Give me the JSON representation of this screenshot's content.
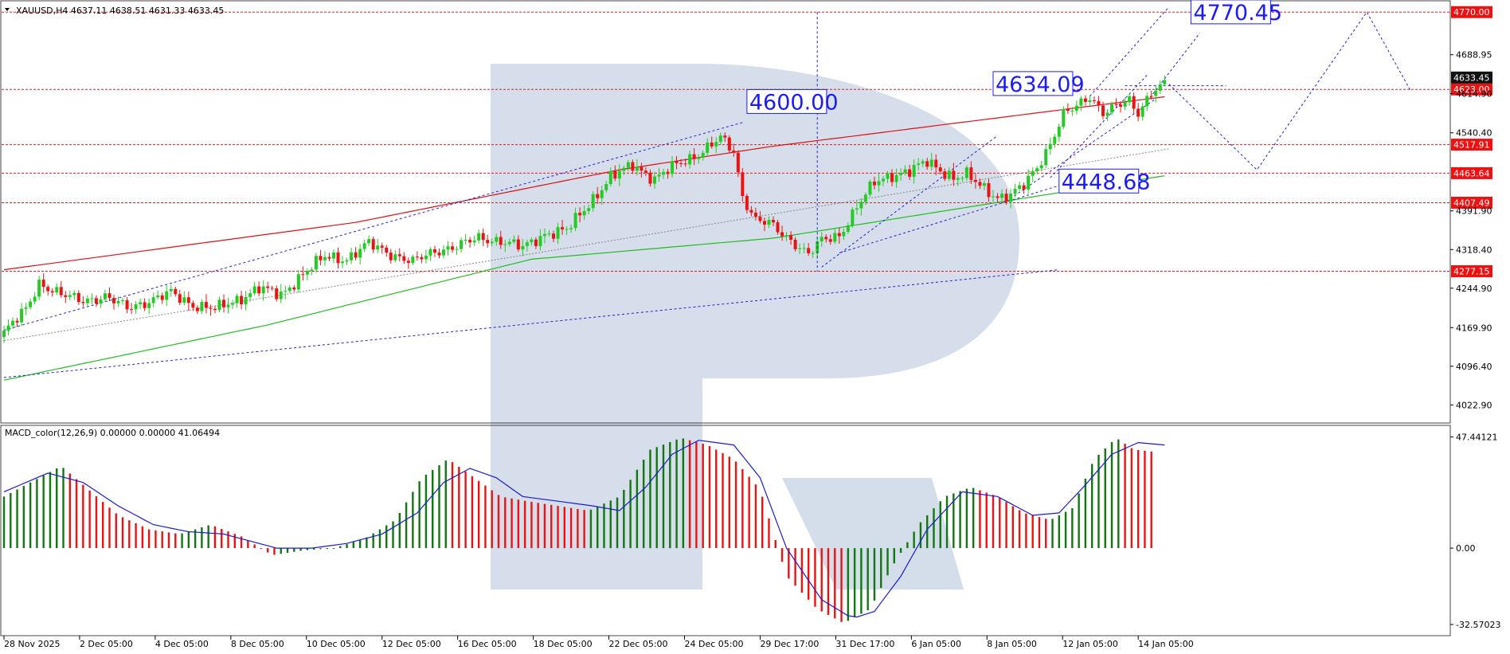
{
  "chart_data": [
    {
      "type": "candlestick",
      "symbol_header": "XAUUSD,H4  4637.11 4638.51 4631.33 4633.45",
      "ylim": [
        3990,
        4790
      ],
      "x_tick_labels": [
        "28 Nov 2025",
        "2 Dec 05:00",
        "4 Dec 05:00",
        "8 Dec 05:00",
        "10 Dec 05:00",
        "12 Dec 05:00",
        "16 Dec 05:00",
        "18 Dec 05:00",
        "22 Dec 05:00",
        "24 Dec 05:00",
        "29 Dec 17:00",
        "31 Dec 17:00",
        "6 Jan 05:00",
        "8 Jan 05:00",
        "12 Jan 05:00",
        "14 Jan 05:00"
      ],
      "y_tick_labels": [
        {
          "label": "4688.95",
          "value": 4688.95
        },
        {
          "label": "4614.90",
          "value": 4614.9
        },
        {
          "label": "4540.40",
          "value": 4540.4
        },
        {
          "label": "4391.90",
          "value": 4391.9
        },
        {
          "label": "4318.40",
          "value": 4318.4
        },
        {
          "label": "4244.90",
          "value": 4244.9
        },
        {
          "label": "4169.90",
          "value": 4169.9
        },
        {
          "label": "4096.40",
          "value": 4096.4
        },
        {
          "label": "4022.90",
          "value": 4022.9
        }
      ],
      "horizontal_levels": [
        {
          "label": "4770.00",
          "value": 4770.0
        },
        {
          "label": "4623.00",
          "value": 4623.0
        },
        {
          "label": "4517.91",
          "value": 4517.91
        },
        {
          "label": "4463.64",
          "value": 4463.64
        },
        {
          "label": "4407.49",
          "value": 4407.49
        },
        {
          "label": "4277.15",
          "value": 4277.15
        }
      ],
      "current_price": {
        "label": "4633.45",
        "value": 4633.45
      },
      "callouts": [
        {
          "label": "4600.00",
          "value": 4600.0
        },
        {
          "label": "4634.09",
          "value": 4634.09
        },
        {
          "label": "4448.68",
          "value": 4448.68
        },
        {
          "label": "4770.45",
          "value": 4770.45
        }
      ],
      "close_path": [
        [
          0,
          4160
        ],
        [
          5,
          4205
        ],
        [
          8,
          4255
        ],
        [
          13,
          4232
        ],
        [
          18,
          4222
        ],
        [
          23,
          4228
        ],
        [
          28,
          4208
        ],
        [
          33,
          4220
        ],
        [
          38,
          4236
        ],
        [
          43,
          4213
        ],
        [
          48,
          4205
        ],
        [
          53,
          4222
        ],
        [
          58,
          4245
        ],
        [
          63,
          4232
        ],
        [
          68,
          4272
        ],
        [
          73,
          4305
        ],
        [
          78,
          4300
        ],
        [
          83,
          4330
        ],
        [
          88,
          4310
        ],
        [
          93,
          4295
        ],
        [
          98,
          4315
        ],
        [
          103,
          4325
        ],
        [
          108,
          4340
        ],
        [
          113,
          4335
        ],
        [
          118,
          4322
        ],
        [
          123,
          4348
        ],
        [
          128,
          4355
        ],
        [
          133,
          4405
        ],
        [
          138,
          4455
        ],
        [
          143,
          4480
        ],
        [
          148,
          4452
        ],
        [
          153,
          4480
        ],
        [
          158,
          4500
        ],
        [
          163,
          4530
        ],
        [
          166,
          4505
        ],
        [
          168,
          4420
        ],
        [
          171,
          4375
        ],
        [
          174,
          4368
        ],
        [
          177,
          4348
        ],
        [
          180,
          4330
        ],
        [
          183,
          4310
        ],
        [
          186,
          4335
        ],
        [
          190,
          4345
        ],
        [
          194,
          4400
        ],
        [
          198,
          4445
        ],
        [
          202,
          4460
        ],
        [
          206,
          4468
        ],
        [
          210,
          4485
        ],
        [
          213,
          4470
        ],
        [
          216,
          4455
        ],
        [
          219,
          4460
        ],
        [
          222,
          4440
        ],
        [
          226,
          4418
        ],
        [
          229,
          4422
        ],
        [
          232,
          4440
        ],
        [
          235,
          4475
        ],
        [
          238,
          4520
        ],
        [
          241,
          4575
        ],
        [
          244,
          4590
        ],
        [
          247,
          4610
        ],
        [
          250,
          4580
        ],
        [
          253,
          4590
        ],
        [
          256,
          4600
        ],
        [
          258,
          4578
        ],
        [
          261,
          4620
        ],
        [
          264,
          4633
        ]
      ],
      "ma_red": [
        [
          0,
          4280
        ],
        [
          80,
          4370
        ],
        [
          140,
          4470
        ],
        [
          175,
          4515
        ],
        [
          265,
          4610
        ]
      ],
      "ma_green": [
        [
          0,
          4070
        ],
        [
          60,
          4175
        ],
        [
          120,
          4300
        ],
        [
          175,
          4340
        ],
        [
          220,
          4400
        ],
        [
          265,
          4460
        ]
      ]
    },
    {
      "type": "bar",
      "indicator_header": "MACD_color(12,26,9) 0.00000 0.00000 41.06494",
      "ylim": [
        -37,
        52
      ],
      "y_tick_labels": [
        {
          "label": "47.44121",
          "value": 47.44121
        },
        {
          "label": "0.00",
          "value": 0
        },
        {
          "label": "-32.57023",
          "value": -32.57023
        }
      ],
      "histogram_path": [
        [
          0,
          22
        ],
        [
          8,
          30
        ],
        [
          13,
          35
        ],
        [
          18,
          27
        ],
        [
          26,
          14
        ],
        [
          33,
          8
        ],
        [
          40,
          6
        ],
        [
          47,
          10
        ],
        [
          54,
          5
        ],
        [
          61,
          -3
        ],
        [
          68,
          -1
        ],
        [
          75,
          0
        ],
        [
          82,
          4
        ],
        [
          89,
          12
        ],
        [
          95,
          30
        ],
        [
          101,
          38
        ],
        [
          107,
          30
        ],
        [
          113,
          22
        ],
        [
          119,
          20
        ],
        [
          126,
          18
        ],
        [
          133,
          16
        ],
        [
          140,
          22
        ],
        [
          147,
          42
        ],
        [
          154,
          47
        ],
        [
          160,
          44
        ],
        [
          166,
          38
        ],
        [
          172,
          25
        ],
        [
          178,
          -12
        ],
        [
          185,
          -26
        ],
        [
          191,
          -32
        ],
        [
          197,
          -26
        ],
        [
          202,
          -8
        ],
        [
          208,
          10
        ],
        [
          214,
          22
        ],
        [
          220,
          26
        ],
        [
          226,
          22
        ],
        [
          232,
          15
        ],
        [
          238,
          12
        ],
        [
          243,
          17
        ],
        [
          248,
          38
        ],
        [
          253,
          47
        ],
        [
          257,
          42
        ],
        [
          262,
          41
        ]
      ],
      "signal_path": [
        [
          0,
          24
        ],
        [
          10,
          32
        ],
        [
          18,
          28
        ],
        [
          26,
          18
        ],
        [
          34,
          10
        ],
        [
          42,
          7
        ],
        [
          50,
          6
        ],
        [
          56,
          3
        ],
        [
          62,
          0
        ],
        [
          70,
          0
        ],
        [
          78,
          2
        ],
        [
          86,
          6
        ],
        [
          94,
          15
        ],
        [
          100,
          28
        ],
        [
          106,
          34
        ],
        [
          112,
          30
        ],
        [
          118,
          22
        ],
        [
          126,
          20
        ],
        [
          134,
          18
        ],
        [
          140,
          16
        ],
        [
          146,
          26
        ],
        [
          152,
          40
        ],
        [
          158,
          46
        ],
        [
          166,
          44
        ],
        [
          172,
          30
        ],
        [
          178,
          0
        ],
        [
          186,
          -22
        ],
        [
          193,
          -30
        ],
        [
          198,
          -27
        ],
        [
          204,
          -12
        ],
        [
          210,
          8
        ],
        [
          218,
          24
        ],
        [
          226,
          22
        ],
        [
          234,
          14
        ],
        [
          240,
          15
        ],
        [
          246,
          27
        ],
        [
          252,
          40
        ],
        [
          258,
          45
        ],
        [
          264,
          44
        ]
      ]
    }
  ]
}
